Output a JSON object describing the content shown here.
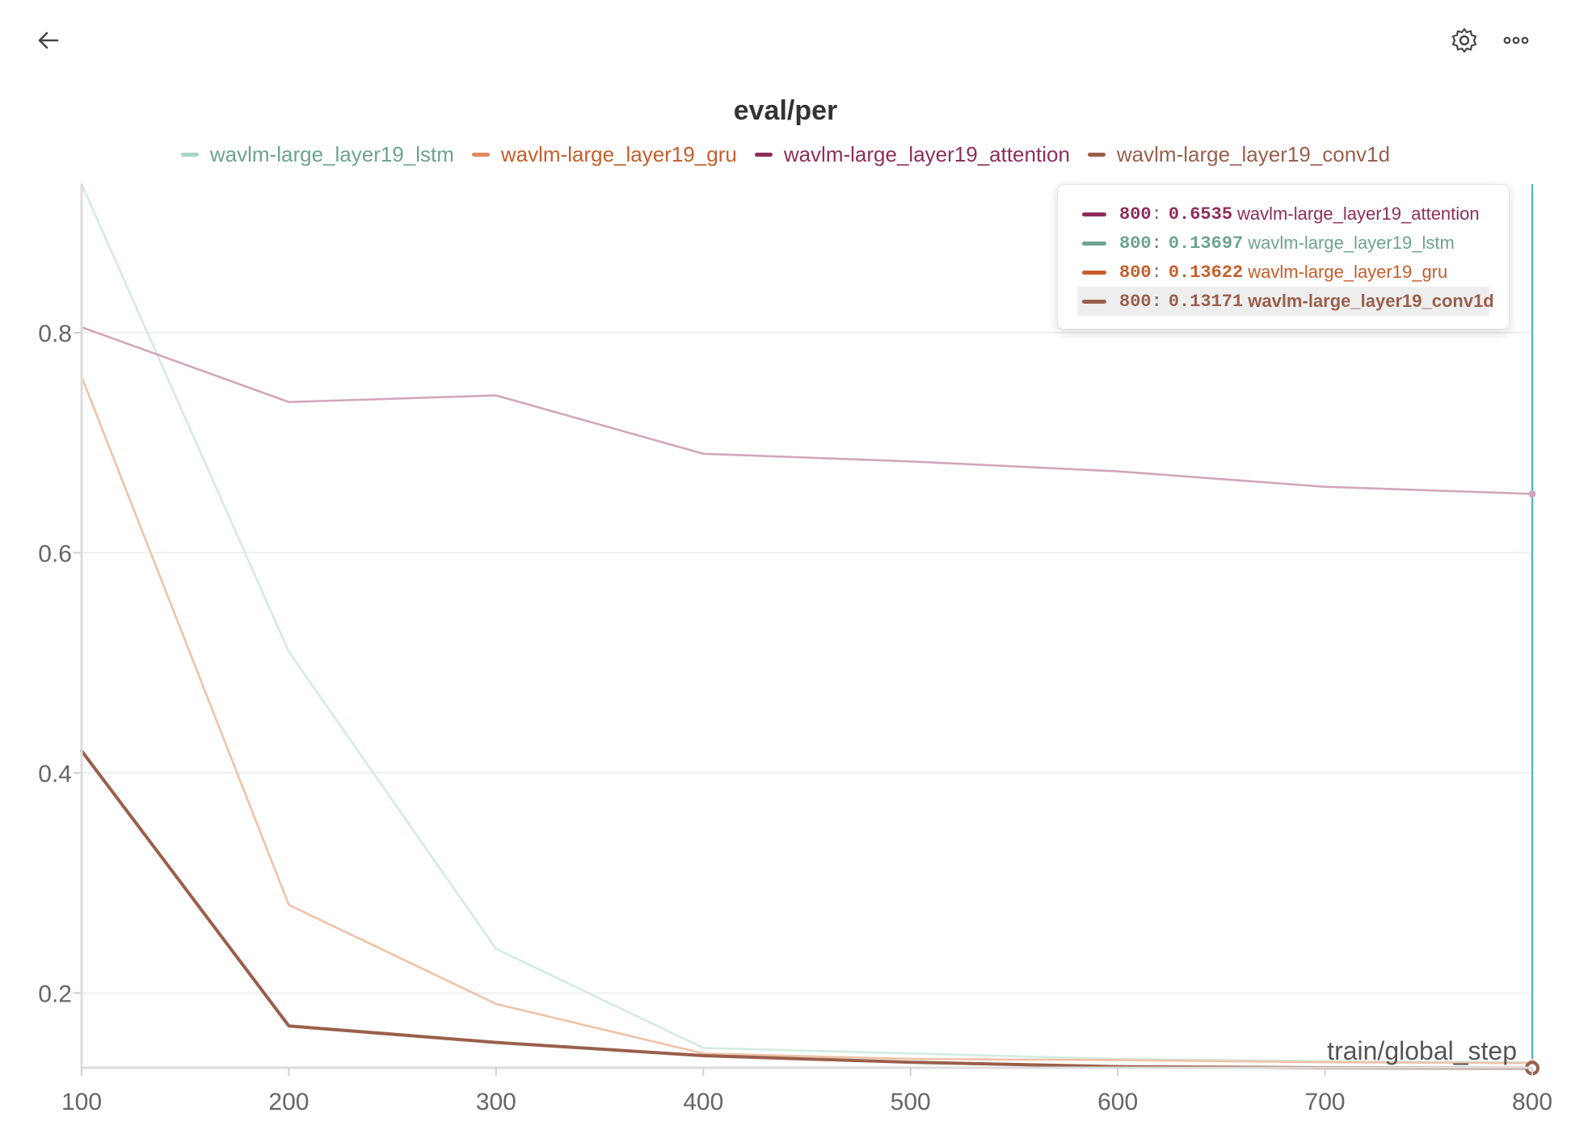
{
  "toolbar": {
    "back_icon": "arrow-left-icon",
    "settings_icon": "gear-icon",
    "more_icon": "more-horizontal-icon"
  },
  "colors": {
    "lstm": "#6da391",
    "gru": "#c55e2b",
    "attention": "#8e2d5c",
    "conv1d": "#9a5f4c",
    "cursor": "#45b6c8"
  },
  "chart_data": {
    "type": "line",
    "title": "eval/per",
    "xlabel": "train/global_step",
    "ylabel": "",
    "x": [
      100,
      200,
      300,
      400,
      500,
      600,
      700,
      800
    ],
    "xticks": [
      "100",
      "200",
      "300",
      "400",
      "500",
      "600",
      "700",
      "800"
    ],
    "yticks": [
      "0.2",
      "0.4",
      "0.6",
      "0.8"
    ],
    "xlim": [
      100,
      800
    ],
    "ylim": [
      0.132,
      0.935
    ],
    "grid": true,
    "legend_position": "top",
    "series": [
      {
        "key": "lstm",
        "name": "wavlm-large_layer19_lstm",
        "color": "#6da391",
        "values": [
          0.935,
          0.51,
          0.24,
          0.15,
          0.145,
          0.14,
          0.138,
          0.13697
        ]
      },
      {
        "key": "gru",
        "name": "wavlm-large_layer19_gru",
        "color": "#c55e2b",
        "values": [
          0.76,
          0.28,
          0.19,
          0.145,
          0.14,
          0.139,
          0.137,
          0.13622
        ]
      },
      {
        "key": "attention",
        "name": "wavlm-large_layer19_attention",
        "color": "#8e2d5c",
        "values": [
          0.805,
          0.737,
          0.743,
          0.69,
          0.683,
          0.674,
          0.66,
          0.6535
        ]
      },
      {
        "key": "conv1d",
        "name": "wavlm-large_layer19_conv1d",
        "color": "#9a5f4c",
        "values": [
          0.42,
          0.17,
          0.155,
          0.143,
          0.137,
          0.133,
          0.132,
          0.13171
        ]
      }
    ],
    "tooltip": {
      "step": "800",
      "highlighted": "wavlm-large_layer19_conv1d",
      "rows": [
        {
          "step": "800",
          "value": "0.6535",
          "name": "wavlm-large_layer19_attention",
          "color": "#8e2d5c"
        },
        {
          "step": "800",
          "value": "0.13697",
          "name": "wavlm-large_layer19_lstm",
          "color": "#6da391"
        },
        {
          "step": "800",
          "value": "0.13622",
          "name": "wavlm-large_layer19_gru",
          "color": "#c55e2b"
        },
        {
          "step": "800",
          "value": "0.13171",
          "name": "wavlm-large_layer19_conv1d",
          "color": "#9a5f4c"
        }
      ]
    }
  }
}
